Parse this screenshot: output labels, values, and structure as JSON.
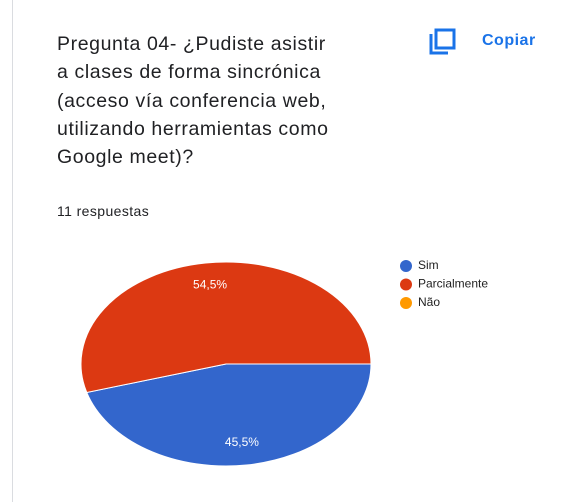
{
  "chart_data": {
    "type": "pie",
    "title": "Pregunta 04- ¿Pudiste asistir a clases de forma sincrónica (acceso vía conferencia web, utilizando herramientas como Google meet)?",
    "subtitle": "11 respuestas",
    "copy_button": "Copiar",
    "categories": [
      "Sim",
      "Parcialmente",
      "Não"
    ],
    "values": [
      45.5,
      54.5,
      0
    ],
    "value_labels": [
      "45,5%",
      "54,5%",
      null
    ],
    "colors": [
      "#3366cc",
      "#dc3912",
      "#ff9900"
    ],
    "legend": "right"
  }
}
